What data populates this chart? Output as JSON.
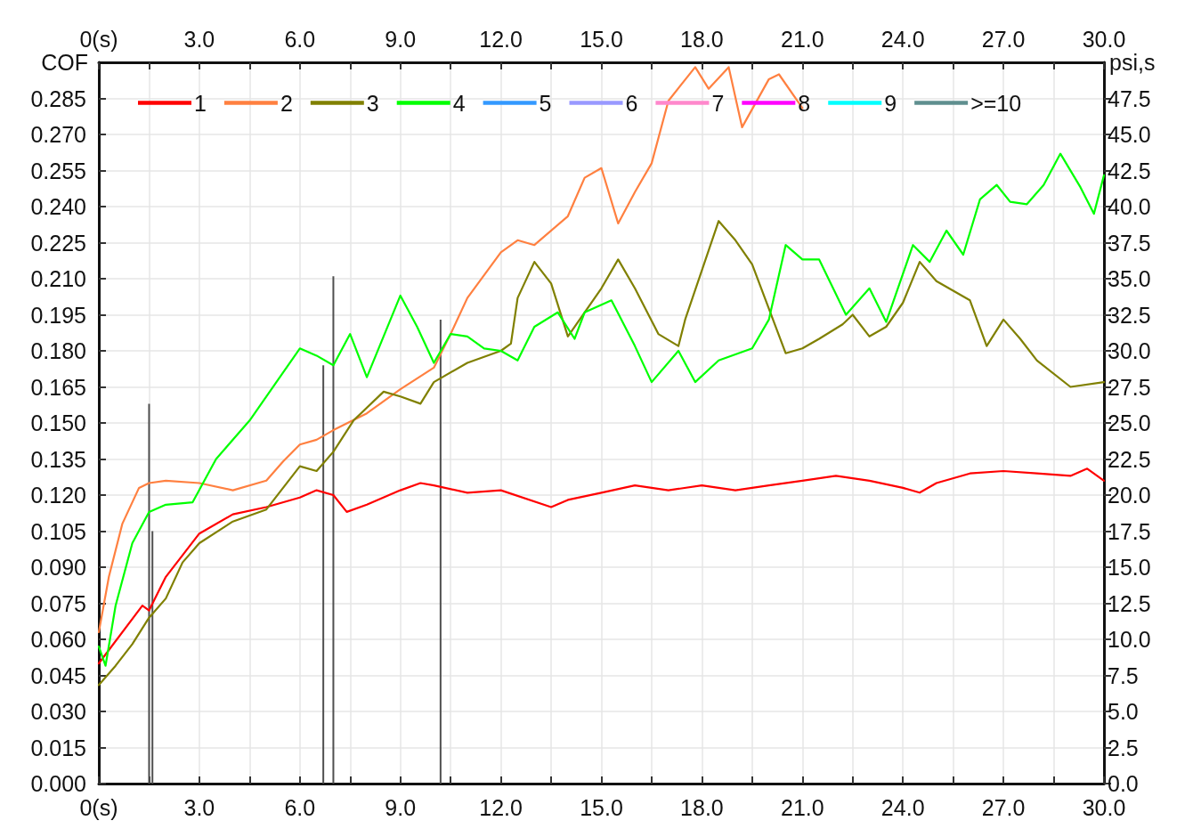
{
  "chart_data": {
    "type": "line",
    "ylabel": "COF",
    "y2label": "psi,s",
    "xlim": [
      0,
      30
    ],
    "x2lim": [
      0,
      30
    ],
    "ylim": [
      0,
      0.3
    ],
    "y2lim": [
      0,
      50
    ],
    "xticks": [
      {
        "value": 0,
        "label": "0(s)"
      },
      {
        "value": 1.5,
        "label": null
      },
      {
        "value": 3,
        "label": "3.0"
      },
      {
        "value": 4.5,
        "label": null
      },
      {
        "value": 6,
        "label": "6.0"
      },
      {
        "value": 7.5,
        "label": null
      },
      {
        "value": 9,
        "label": "9.0"
      },
      {
        "value": 10.5,
        "label": null
      },
      {
        "value": 12,
        "label": "12.0"
      },
      {
        "value": 13.5,
        "label": null
      },
      {
        "value": 15,
        "label": "15.0"
      },
      {
        "value": 16.5,
        "label": null
      },
      {
        "value": 18,
        "label": "18.0"
      },
      {
        "value": 19.5,
        "label": null
      },
      {
        "value": 21,
        "label": "21.0"
      },
      {
        "value": 22.5,
        "label": null
      },
      {
        "value": 24,
        "label": "24.0"
      },
      {
        "value": 25.5,
        "label": null
      },
      {
        "value": 27,
        "label": "27.0"
      },
      {
        "value": 28.5,
        "label": null
      },
      {
        "value": 30,
        "label": "30.0"
      }
    ],
    "x2ticks": [
      {
        "value": 0,
        "label": "0(s)"
      },
      {
        "value": 1.5,
        "label": null
      },
      {
        "value": 3,
        "label": "3.0"
      },
      {
        "value": 4.5,
        "label": null
      },
      {
        "value": 6,
        "label": "6.0"
      },
      {
        "value": 7.5,
        "label": null
      },
      {
        "value": 9,
        "label": "9.0"
      },
      {
        "value": 10.5,
        "label": null
      },
      {
        "value": 12,
        "label": "12.0"
      },
      {
        "value": 13.5,
        "label": null
      },
      {
        "value": 15,
        "label": "15.0"
      },
      {
        "value": 16.5,
        "label": null
      },
      {
        "value": 18,
        "label": "18.0"
      },
      {
        "value": 19.5,
        "label": null
      },
      {
        "value": 21,
        "label": "21.0"
      },
      {
        "value": 22.5,
        "label": null
      },
      {
        "value": 24,
        "label": "24.0"
      },
      {
        "value": 25.5,
        "label": null
      },
      {
        "value": 27,
        "label": "27.0"
      },
      {
        "value": 28.5,
        "label": null
      },
      {
        "value": 30,
        "label": "30.0"
      }
    ],
    "yticks": [
      {
        "value": 0,
        "label": "0.000"
      },
      {
        "value": 0.015,
        "label": "0.015"
      },
      {
        "value": 0.03,
        "label": "0.030"
      },
      {
        "value": 0.045,
        "label": "0.045"
      },
      {
        "value": 0.06,
        "label": "0.060"
      },
      {
        "value": 0.075,
        "label": "0.075"
      },
      {
        "value": 0.09,
        "label": "0.090"
      },
      {
        "value": 0.105,
        "label": "0.105"
      },
      {
        "value": 0.12,
        "label": "0.120"
      },
      {
        "value": 0.135,
        "label": "0.135"
      },
      {
        "value": 0.15,
        "label": "0.150"
      },
      {
        "value": 0.165,
        "label": "0.165"
      },
      {
        "value": 0.18,
        "label": "0.180"
      },
      {
        "value": 0.195,
        "label": "0.195"
      },
      {
        "value": 0.21,
        "label": "0.210"
      },
      {
        "value": 0.225,
        "label": "0.225"
      },
      {
        "value": 0.24,
        "label": "0.240"
      },
      {
        "value": 0.255,
        "label": "0.255"
      },
      {
        "value": 0.27,
        "label": "0.270"
      },
      {
        "value": 0.285,
        "label": "0.285"
      }
    ],
    "y2ticks": [
      {
        "value": 0,
        "label": "0.0"
      },
      {
        "value": 2.5,
        "label": "2.5"
      },
      {
        "value": 5,
        "label": "5.0"
      },
      {
        "value": 7.5,
        "label": "7.5"
      },
      {
        "value": 10,
        "label": "10.0"
      },
      {
        "value": 12.5,
        "label": "12.5"
      },
      {
        "value": 15,
        "label": "15.0"
      },
      {
        "value": 17.5,
        "label": "17.5"
      },
      {
        "value": 20,
        "label": "20.0"
      },
      {
        "value": 22.5,
        "label": "22.5"
      },
      {
        "value": 25,
        "label": "25.0"
      },
      {
        "value": 27.5,
        "label": "27.5"
      },
      {
        "value": 30,
        "label": "30.0"
      },
      {
        "value": 32.5,
        "label": "32.5"
      },
      {
        "value": 35,
        "label": "35.0"
      },
      {
        "value": 37.5,
        "label": "37.5"
      },
      {
        "value": 40,
        "label": "40.0"
      },
      {
        "value": 42.5,
        "label": "42.5"
      },
      {
        "value": 45,
        "label": "45.0"
      },
      {
        "value": 47.5,
        "label": "47.5"
      }
    ],
    "grid": true,
    "legend": "top",
    "marker": "none",
    "line_style": "solid",
    "series": [
      {
        "name": "1",
        "color": "#ff0000",
        "x": [
          0,
          1.3,
          1.5,
          2,
          3,
          4,
          5,
          6,
          6.5,
          7,
          7.4,
          8,
          9,
          9.6,
          10,
          11,
          12,
          13.5,
          14,
          15,
          16,
          17,
          18,
          19,
          20,
          21,
          22,
          23,
          24,
          24.5,
          25,
          26,
          27,
          28,
          29,
          29.5,
          30
        ],
        "values": [
          0.05,
          0.074,
          0.072,
          0.086,
          0.104,
          0.112,
          0.115,
          0.119,
          0.122,
          0.12,
          0.113,
          0.116,
          0.122,
          0.125,
          0.124,
          0.121,
          0.122,
          0.115,
          0.118,
          0.121,
          0.124,
          0.122,
          0.124,
          0.122,
          0.124,
          0.126,
          0.128,
          0.126,
          0.123,
          0.121,
          0.125,
          0.129,
          0.13,
          0.129,
          0.128,
          0.131,
          0.126
        ]
      },
      {
        "name": "2",
        "color": "#ff8040",
        "x": [
          0,
          0.3,
          0.7,
          1.2,
          1.5,
          2,
          3,
          4,
          5,
          5.5,
          6,
          6.5,
          7,
          8,
          9,
          10,
          10.5,
          11,
          12,
          12.5,
          13,
          14,
          14.5,
          15,
          15.5,
          16,
          16.5,
          17,
          17.8,
          18.2,
          18.8,
          19.2,
          20,
          20.3,
          21
        ],
        "values": [
          0.063,
          0.086,
          0.108,
          0.123,
          0.125,
          0.126,
          0.125,
          0.122,
          0.126,
          0.134,
          0.141,
          0.143,
          0.147,
          0.154,
          0.164,
          0.173,
          0.187,
          0.202,
          0.221,
          0.226,
          0.224,
          0.236,
          0.252,
          0.256,
          0.233,
          0.246,
          0.258,
          0.284,
          0.298,
          0.289,
          0.298,
          0.273,
          0.293,
          0.295,
          0.281
        ]
      },
      {
        "name": "3",
        "color": "#808000",
        "x": [
          0,
          0.5,
          1,
          1.5,
          2,
          2.5,
          3,
          4,
          5,
          6,
          6.5,
          7,
          7.6,
          8.5,
          9,
          9.6,
          10,
          11,
          12,
          12.3,
          12.5,
          13,
          13.5,
          14,
          15,
          15.5,
          16,
          16.7,
          17.3,
          17.5,
          18.5,
          19,
          19.5,
          20.5,
          21,
          21.5,
          22.2,
          22.5,
          23,
          23.5,
          24,
          24.5,
          25,
          25.5,
          26,
          26.5,
          27,
          27.5,
          28,
          29,
          30
        ],
        "values": [
          0.041,
          0.049,
          0.058,
          0.069,
          0.077,
          0.092,
          0.1,
          0.109,
          0.114,
          0.132,
          0.13,
          0.138,
          0.151,
          0.163,
          0.161,
          0.158,
          0.167,
          0.175,
          0.18,
          0.183,
          0.202,
          0.217,
          0.208,
          0.186,
          0.206,
          0.218,
          0.206,
          0.187,
          0.182,
          0.193,
          0.234,
          0.226,
          0.216,
          0.179,
          0.181,
          0.185,
          0.191,
          0.195,
          0.186,
          0.19,
          0.2,
          0.217,
          0.209,
          0.205,
          0.201,
          0.182,
          0.193,
          0.185,
          0.176,
          0.165,
          0.167
        ]
      },
      {
        "name": "4",
        "color": "#00ff00",
        "x": [
          0,
          0.2,
          0.5,
          1,
          1.5,
          2,
          2.8,
          3.5,
          4.5,
          5.3,
          6,
          6.5,
          7,
          7.5,
          8,
          9,
          9.5,
          10,
          10.5,
          11,
          11.5,
          12,
          12.5,
          13,
          13.7,
          14.2,
          14.5,
          15.3,
          16,
          16.5,
          17.3,
          17.8,
          18.5,
          19.5,
          20,
          20.5,
          21,
          21.5,
          22.3,
          23,
          23.5,
          24.3,
          24.8,
          25.3,
          25.8,
          26.3,
          26.8,
          27.2,
          27.7,
          28.2,
          28.7,
          29.3,
          29.7,
          30
        ],
        "values": [
          0.057,
          0.049,
          0.074,
          0.1,
          0.113,
          0.116,
          0.117,
          0.135,
          0.151,
          0.167,
          0.181,
          0.178,
          0.174,
          0.187,
          0.169,
          0.203,
          0.19,
          0.175,
          0.187,
          0.186,
          0.181,
          0.18,
          0.176,
          0.19,
          0.196,
          0.185,
          0.196,
          0.201,
          0.182,
          0.167,
          0.18,
          0.167,
          0.176,
          0.181,
          0.193,
          0.224,
          0.218,
          0.218,
          0.195,
          0.206,
          0.192,
          0.224,
          0.217,
          0.23,
          0.22,
          0.243,
          0.249,
          0.242,
          0.241,
          0.249,
          0.262,
          0.248,
          0.237,
          0.253
        ]
      },
      {
        "name": "5",
        "color": "#3399ff"
      },
      {
        "name": "6",
        "color": "#9999ff"
      },
      {
        "name": "7",
        "color": "#ff88cc"
      },
      {
        "name": "8",
        "color": "#ff00ff"
      },
      {
        "name": "9",
        "color": "#00ffff"
      },
      {
        "name": ">=10",
        "color": "#5f8f8f"
      },
      {
        "type": "bar",
        "color": "#505050",
        "x": [
          1.5,
          1.6,
          6.7,
          7.0,
          10.2
        ],
        "values": [
          0.158,
          0.105,
          0.174,
          0.211,
          0.193
        ]
      }
    ]
  }
}
